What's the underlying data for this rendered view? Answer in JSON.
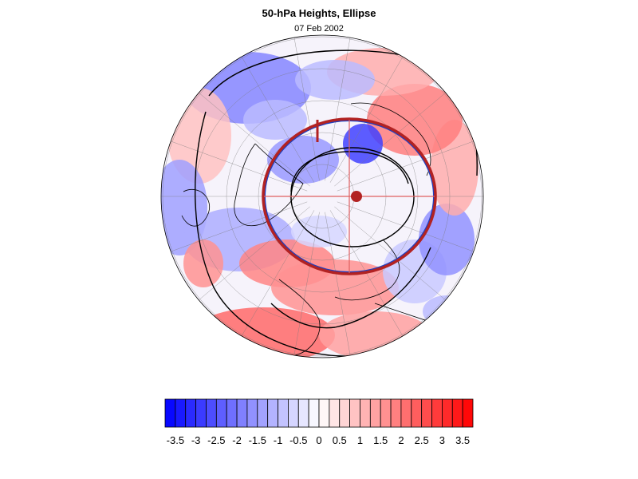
{
  "header": {
    "title": "50-hPa Heights, Ellipse",
    "date": "07 Feb 2002"
  },
  "colors": {
    "negative_max": "#0000ff",
    "neutral": "#ffffff",
    "positive_max": "#ff0000",
    "ellipse": "#b22222",
    "ellipse_inner_edge": "#1f3fbf",
    "contour": "#000000",
    "axis_line": "#e06060"
  },
  "map": {
    "projection": "polar stereographic (north pole)",
    "field": "50-hPa height anomaly",
    "overlay": "fitted vortex ellipse with centroid"
  },
  "colorbar": {
    "levels": [
      -3.75,
      -3.5,
      -3.25,
      -3,
      -2.75,
      -2.5,
      -2.25,
      -2,
      -1.75,
      -1.5,
      -1.25,
      -1,
      -0.75,
      -0.5,
      -0.25,
      0,
      0.25,
      0.5,
      0.75,
      1,
      1.25,
      1.5,
      1.75,
      2,
      2.25,
      2.5,
      2.75,
      3,
      3.25,
      3.5,
      3.75
    ],
    "range": [
      -3.75,
      3.75
    ],
    "tick_labels": [
      "-3.5",
      "-3",
      "-2.5",
      "-2",
      "-1.5",
      "-1",
      "-0.5",
      "0",
      "0.5",
      "1",
      "1.5",
      "2",
      "2.5",
      "3",
      "3.5"
    ]
  }
}
